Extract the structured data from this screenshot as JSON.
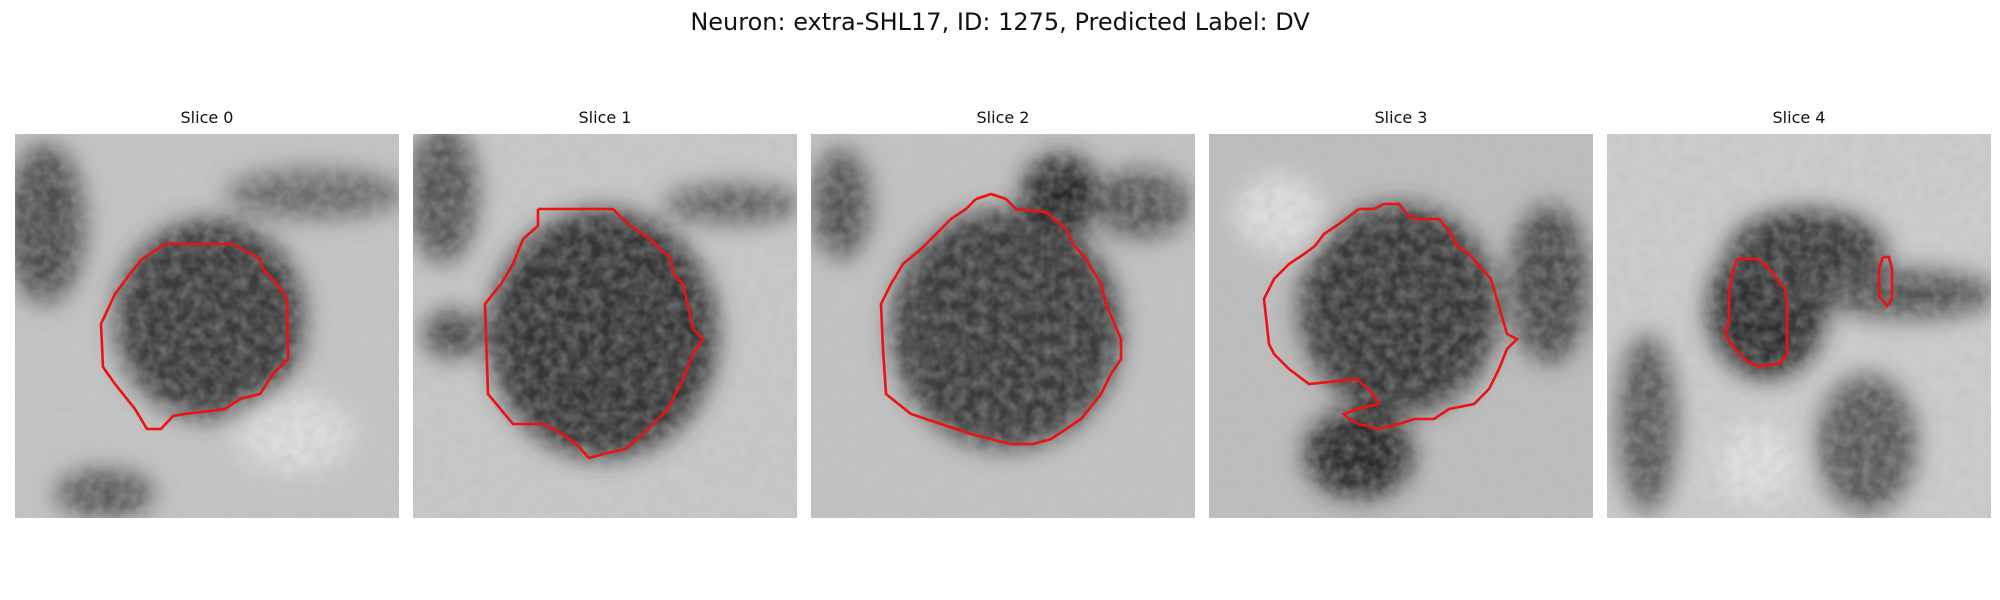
{
  "figure": {
    "title": "Neuron: extra-SHL17, ID: 1275, Predicted Label: DV",
    "contour_color": "#ee1111"
  },
  "panels": [
    {
      "title": "Slice 0"
    },
    {
      "title": "Slice 1"
    },
    {
      "title": "Slice 2"
    },
    {
      "title": "Slice 3"
    },
    {
      "title": "Slice 4"
    }
  ]
}
